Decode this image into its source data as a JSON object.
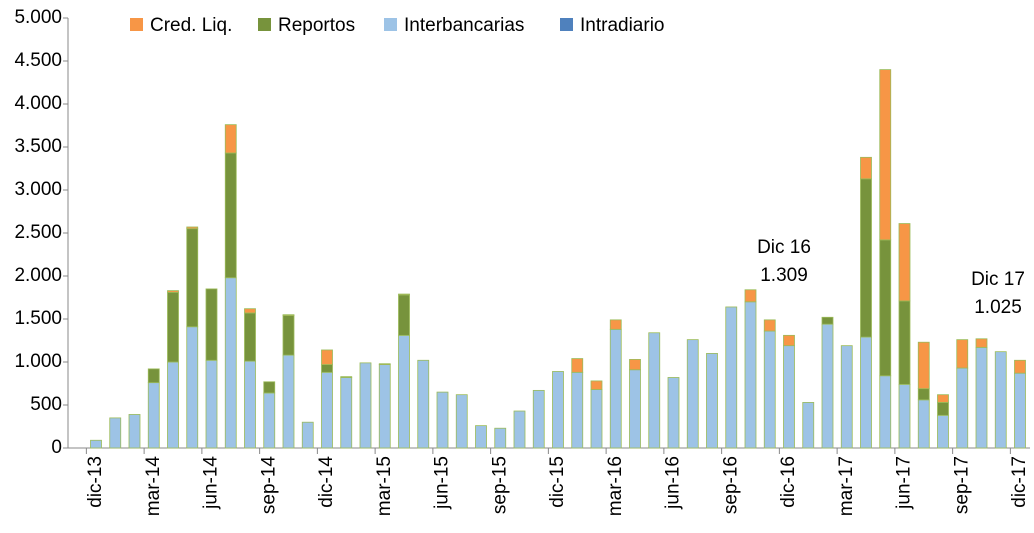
{
  "chart_data": {
    "type": "bar",
    "stacked": true,
    "categories": [
      "dic-13",
      null,
      null,
      "mar-14",
      null,
      null,
      "jun-14",
      null,
      null,
      "sep-14",
      null,
      null,
      "dic-14",
      null,
      null,
      "mar-15",
      null,
      null,
      "jun-15",
      null,
      null,
      "sep-15",
      null,
      null,
      "dic-15",
      null,
      null,
      "mar-16",
      null,
      null,
      "jun-16",
      null,
      null,
      "sep-16",
      null,
      null,
      "dic-16",
      null,
      null,
      "mar-17",
      null,
      null,
      "jun-17",
      null,
      null,
      "sep-17",
      null,
      null,
      "dic-17"
    ],
    "series": [
      {
        "name": "Cred. Liq.",
        "color": "#f79646",
        "values": [
          0,
          0,
          0,
          0,
          20,
          20,
          0,
          330,
          50,
          0,
          10,
          0,
          170,
          0,
          0,
          10,
          10,
          0,
          0,
          0,
          0,
          0,
          0,
          0,
          0,
          160,
          100,
          110,
          120,
          0,
          0,
          0,
          0,
          0,
          140,
          130,
          120,
          0,
          0,
          0,
          250,
          1980,
          900,
          540,
          90,
          330,
          100,
          0,
          150
        ]
      },
      {
        "name": "Reportos",
        "color": "#77933c",
        "values": [
          0,
          0,
          0,
          160,
          810,
          1140,
          830,
          1450,
          560,
          130,
          460,
          0,
          90,
          10,
          0,
          0,
          470,
          0,
          0,
          0,
          0,
          0,
          0,
          0,
          0,
          0,
          0,
          0,
          0,
          0,
          0,
          0,
          0,
          0,
          0,
          0,
          0,
          0,
          80,
          0,
          1840,
          1580,
          970,
          130,
          150,
          0,
          0,
          0,
          0
        ]
      },
      {
        "name": "Interbancarias",
        "color": "#9dc3e6",
        "values": [
          90,
          350,
          390,
          760,
          1000,
          1410,
          1020,
          1980,
          1010,
          640,
          1080,
          300,
          880,
          820,
          990,
          970,
          1310,
          1020,
          650,
          620,
          260,
          230,
          430,
          670,
          890,
          880,
          680,
          1380,
          910,
          1340,
          820,
          1260,
          1100,
          1640,
          1700,
          1360,
          1190,
          530,
          1440,
          1190,
          1290,
          840,
          740,
          560,
          380,
          930,
          1170,
          1120,
          870
        ]
      },
      {
        "name": "Intradiario",
        "color": "#4f81bd",
        "values": [
          0,
          0,
          0,
          0,
          0,
          0,
          0,
          0,
          0,
          0,
          0,
          0,
          0,
          0,
          0,
          0,
          0,
          0,
          0,
          0,
          0,
          0,
          0,
          0,
          0,
          0,
          0,
          0,
          0,
          0,
          0,
          0,
          0,
          0,
          0,
          0,
          0,
          0,
          0,
          0,
          0,
          0,
          0,
          0,
          0,
          0,
          0,
          0,
          0
        ]
      }
    ],
    "ylim": [
      0,
      5000
    ],
    "yticks": [
      0,
      500,
      {
        "value": 1000,
        "label": "1.000"
      },
      {
        "value": 1500,
        "label": "1.500"
      },
      {
        "value": 2000,
        "label": "2.000"
      },
      {
        "value": 2500,
        "label": "2.500"
      },
      {
        "value": 3000,
        "label": "3.000"
      },
      {
        "value": 3500,
        "label": "3.500"
      },
      {
        "value": 4000,
        "label": "4.000"
      },
      {
        "value": 4500,
        "label": "4.500"
      },
      {
        "value": 5000,
        "label": "5.000"
      }
    ],
    "annotations": [
      {
        "category": 36,
        "lines": [
          "Dic 16",
          "1.309"
        ]
      },
      {
        "category": 48,
        "lines": [
          "Dic 17",
          "1.025"
        ]
      }
    ],
    "legend": "top"
  }
}
